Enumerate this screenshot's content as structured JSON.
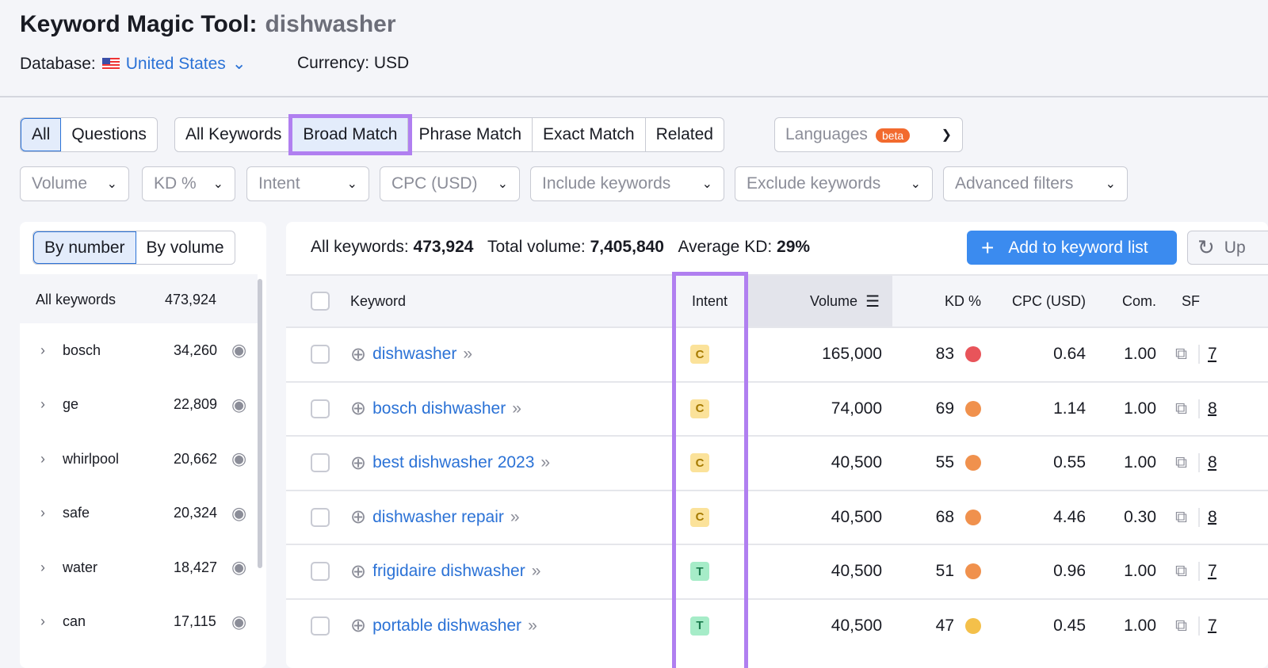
{
  "header": {
    "title": "Keyword Magic Tool:",
    "query": "dishwasher",
    "database_label": "Database:",
    "database": "United States",
    "currency": "Currency: USD"
  },
  "tabs1": [
    "All",
    "Questions"
  ],
  "tabs2": [
    "All Keywords",
    "Broad Match",
    "Phrase Match",
    "Exact Match",
    "Related"
  ],
  "languages": {
    "label": "Languages",
    "badge": "beta"
  },
  "filters": [
    "Volume",
    "KD %",
    "Intent",
    "CPC (USD)",
    "Include keywords",
    "Exclude keywords",
    "Advanced filters"
  ],
  "sidebar": {
    "toggle": [
      "By number",
      "By volume"
    ],
    "all_label": "All keywords",
    "all_count": "473,924",
    "groups": [
      {
        "name": "bosch",
        "count": "34,260"
      },
      {
        "name": "ge",
        "count": "22,809"
      },
      {
        "name": "whirlpool",
        "count": "20,662"
      },
      {
        "name": "safe",
        "count": "20,324"
      },
      {
        "name": "water",
        "count": "18,427"
      },
      {
        "name": "can",
        "count": "17,115"
      }
    ]
  },
  "summary": {
    "all_label": "All keywords:",
    "all": "473,924",
    "vol_label": "Total volume:",
    "vol": "7,405,840",
    "kd_label": "Average KD:",
    "kd": "29%"
  },
  "actions": {
    "add": "Add to keyword list",
    "update": "Up"
  },
  "columns": [
    "Keyword",
    "Intent",
    "Volume",
    "KD %",
    "CPC (USD)",
    "Com.",
    "SF"
  ],
  "colors": {
    "accent": "#2b72d6",
    "highlight": "#b07ff0",
    "kd_hard": "#e8545a",
    "kd_mid": "#f0914d",
    "kd_easy": "#f4c04a",
    "intent_c": "#fbe29a",
    "intent_t": "#a6ecc8"
  },
  "rows": [
    {
      "keyword": "dishwasher",
      "intent": "C",
      "volume": "165,000",
      "kd": "83",
      "kd_color": "#e8545a",
      "cpc": "0.64",
      "com": "1.00",
      "sf": "7"
    },
    {
      "keyword": "bosch dishwasher",
      "intent": "C",
      "volume": "74,000",
      "kd": "69",
      "kd_color": "#f0914d",
      "cpc": "1.14",
      "com": "1.00",
      "sf": "8"
    },
    {
      "keyword": "best dishwasher 2023",
      "intent": "C",
      "volume": "40,500",
      "kd": "55",
      "kd_color": "#f0914d",
      "cpc": "0.55",
      "com": "1.00",
      "sf": "8"
    },
    {
      "keyword": "dishwasher repair",
      "intent": "C",
      "volume": "40,500",
      "kd": "68",
      "kd_color": "#f0914d",
      "cpc": "4.46",
      "com": "0.30",
      "sf": "8"
    },
    {
      "keyword": "frigidaire dishwasher",
      "intent": "T",
      "volume": "40,500",
      "kd": "51",
      "kd_color": "#f0914d",
      "cpc": "0.96",
      "com": "1.00",
      "sf": "7"
    },
    {
      "keyword": "portable dishwasher",
      "intent": "T",
      "volume": "40,500",
      "kd": "47",
      "kd_color": "#f4c04a",
      "cpc": "0.45",
      "com": "1.00",
      "sf": "7"
    }
  ]
}
